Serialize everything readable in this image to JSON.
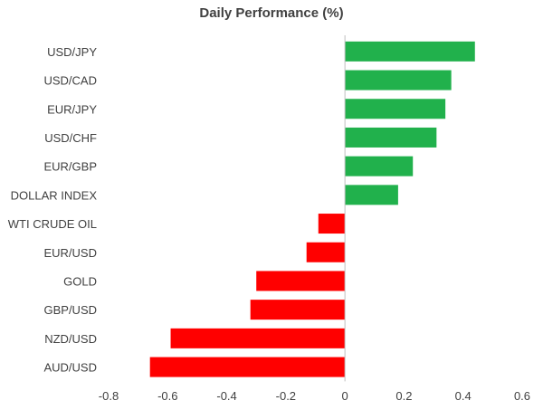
{
  "chart_data": {
    "type": "bar",
    "orientation": "horizontal",
    "title": "Daily Performance (%)",
    "xlabel": "",
    "ylabel": "",
    "xlim": [
      -0.8,
      0.6
    ],
    "xticks": [
      "-0.8",
      "-0.6",
      "-0.4",
      "-0.2",
      "0",
      "0.2",
      "0.4",
      "0.6"
    ],
    "categories": [
      "USD/JPY",
      "USD/CAD",
      "EUR/JPY",
      "USD/CHF",
      "EUR/GBP",
      "DOLLAR INDEX",
      "WTI CRUDE OIL",
      "EUR/USD",
      "GOLD",
      "GBP/USD",
      "NZD/USD",
      "AUD/USD"
    ],
    "values": [
      0.44,
      0.36,
      0.34,
      0.31,
      0.23,
      0.18,
      -0.09,
      -0.13,
      -0.3,
      -0.32,
      -0.59,
      -0.66
    ],
    "grid": false,
    "legend": "none",
    "colors": {
      "positive": "#21B14C",
      "negative": "#FF0000",
      "axis": "#BFBFBF",
      "text": "#404040"
    }
  }
}
